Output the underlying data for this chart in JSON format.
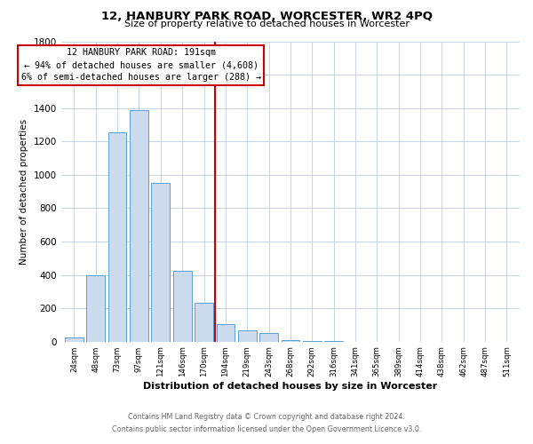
{
  "title": "12, HANBURY PARK ROAD, WORCESTER, WR2 4PQ",
  "subtitle": "Size of property relative to detached houses in Worcester",
  "xlabel": "Distribution of detached houses by size in Worcester",
  "ylabel": "Number of detached properties",
  "bar_labels": [
    "24sqm",
    "48sqm",
    "73sqm",
    "97sqm",
    "121sqm",
    "146sqm",
    "170sqm",
    "194sqm",
    "219sqm",
    "243sqm",
    "268sqm",
    "292sqm",
    "316sqm",
    "341sqm",
    "365sqm",
    "389sqm",
    "414sqm",
    "438sqm",
    "462sqm",
    "487sqm",
    "511sqm"
  ],
  "bar_values": [
    25,
    395,
    1255,
    1390,
    950,
    425,
    235,
    105,
    65,
    50,
    10,
    5,
    2,
    1,
    0,
    0,
    0,
    0,
    0,
    0,
    0
  ],
  "bar_color": "#ccdcee",
  "bar_edge_color": "#5a9fd4",
  "vline_index": 7,
  "annotation_title": "12 HANBURY PARK ROAD: 191sqm",
  "annotation_line1": "← 94% of detached houses are smaller (4,608)",
  "annotation_line2": "6% of semi-detached houses are larger (288) →",
  "annotation_box_color": "#ffffff",
  "annotation_box_edge_color": "#cc0000",
  "vline_color": "#cc0000",
  "ylim": [
    0,
    1800
  ],
  "yticks": [
    0,
    200,
    400,
    600,
    800,
    1000,
    1200,
    1400,
    1600,
    1800
  ],
  "grid_color": "#c8d4e4",
  "footer1": "Contains HM Land Registry data © Crown copyright and database right 2024.",
  "footer2": "Contains public sector information licensed under the Open Government Licence v3.0."
}
